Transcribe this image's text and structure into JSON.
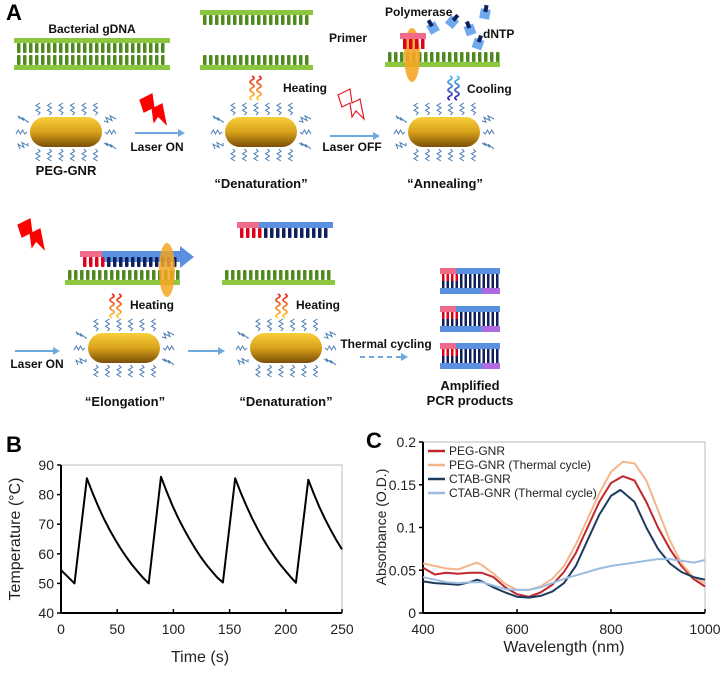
{
  "panel_labels": {
    "a": "A",
    "b": "B",
    "c": "C"
  },
  "panel_a": {
    "gdna": "Bacterial gDNA",
    "peg_gnr": "PEG-GNR",
    "laser_on_1": "Laser ON",
    "laser_off": "Laser OFF",
    "laser_on_2": "Laser ON",
    "heating_1": "Heating",
    "heating_2": "Heating",
    "heating_3": "Heating",
    "cooling": "Cooling",
    "polymerase": "Polymerase",
    "primer": "Primer",
    "dntp": "dNTP",
    "denaturation_1": "“Denaturation”",
    "annealing": "“Annealing”",
    "elongation": "“Elongation”",
    "denaturation_2": "“Denaturation”",
    "thermal_cycling": "Thermal cycling",
    "amplified_1": "Amplified",
    "amplified_2": "PCR products",
    "colors": {
      "dna_template": "#8dc63f",
      "primer": "#f06a8a",
      "new_strand": "#5b8fe0",
      "gnr": "#d9a21b",
      "polymerase": "#f5a623",
      "laser_on": "#ff0000"
    }
  },
  "chart_data": [
    {
      "type": "line",
      "panel": "B",
      "xlabel": "Time (s)",
      "ylabel": "Temperature (°C)",
      "xlim": [
        0,
        250
      ],
      "ylim": [
        40,
        90
      ],
      "xticks": [
        0,
        50,
        100,
        150,
        200,
        250
      ],
      "yticks": [
        40,
        50,
        60,
        70,
        80,
        90
      ],
      "grid": false,
      "series": [
        {
          "color": "#000000",
          "points": [
            [
              0,
              54.5
            ],
            [
              12,
              50
            ],
            [
              23,
              85.5
            ],
            [
              28,
              80.6
            ],
            [
              33,
              76.1
            ],
            [
              38,
              72.0
            ],
            [
              43,
              68.3
            ],
            [
              48,
              64.9
            ],
            [
              53,
              61.8
            ],
            [
              58,
              59.0
            ],
            [
              63,
              56.4
            ],
            [
              68,
              54.1
            ],
            [
              73,
              51.9
            ],
            [
              78,
              50
            ],
            [
              89,
              86
            ],
            [
              94,
              81
            ],
            [
              99,
              76.4
            ],
            [
              104,
              72.3
            ],
            [
              109,
              68.6
            ],
            [
              114,
              65.2
            ],
            [
              119,
              62
            ],
            [
              124,
              59.1
            ],
            [
              129,
              56.5
            ],
            [
              134,
              54.2
            ],
            [
              139,
              52
            ],
            [
              144,
              50.3
            ],
            [
              155,
              85.5
            ],
            [
              160,
              80.6
            ],
            [
              165,
              76.1
            ],
            [
              170,
              72
            ],
            [
              175,
              68.3
            ],
            [
              180,
              64.9
            ],
            [
              185,
              61.8
            ],
            [
              190,
              59
            ],
            [
              195,
              56.4
            ],
            [
              200,
              54.1
            ],
            [
              205,
              51.9
            ],
            [
              209,
              50.2
            ],
            [
              220,
              85
            ],
            [
              225,
              80.2
            ],
            [
              230,
              75.7
            ],
            [
              235,
              71.7
            ],
            [
              240,
              68
            ],
            [
              245,
              64.6
            ],
            [
              250,
              61.5
            ]
          ]
        }
      ]
    },
    {
      "type": "line",
      "panel": "C",
      "xlabel": "Wavelength (nm)",
      "ylabel": "Absorbance (O.D.)",
      "xlim": [
        400,
        1000
      ],
      "ylim": [
        0,
        0.2
      ],
      "xticks": [
        400,
        600,
        800,
        1000
      ],
      "yticks": [
        0,
        0.05,
        0.1,
        0.15,
        0.2
      ],
      "ytick_labels": [
        "0",
        "0.05",
        "0.1",
        "0.15",
        "0.2"
      ],
      "grid": false,
      "legend": "top-left",
      "series": [
        {
          "name": "PEG-GNR",
          "color": "#c0262c",
          "points": [
            [
              400,
              0.053
            ],
            [
              425,
              0.045
            ],
            [
              450,
              0.047
            ],
            [
              475,
              0.046
            ],
            [
              500,
              0.047
            ],
            [
              525,
              0.047
            ],
            [
              550,
              0.042
            ],
            [
              575,
              0.03
            ],
            [
              600,
              0.022
            ],
            [
              625,
              0.019
            ],
            [
              650,
              0.024
            ],
            [
              675,
              0.033
            ],
            [
              700,
              0.048
            ],
            [
              725,
              0.07
            ],
            [
              750,
              0.1
            ],
            [
              775,
              0.13
            ],
            [
              800,
              0.152
            ],
            [
              825,
              0.16
            ],
            [
              850,
              0.155
            ],
            [
              875,
              0.13
            ],
            [
              900,
              0.1
            ],
            [
              925,
              0.075
            ],
            [
              950,
              0.055
            ],
            [
              975,
              0.04
            ],
            [
              1000,
              0.031
            ]
          ]
        },
        {
          "name": "PEG-GNR (Thermal cycle)",
          "color": "#f5b58a",
          "points": [
            [
              400,
              0.058
            ],
            [
              425,
              0.055
            ],
            [
              450,
              0.052
            ],
            [
              475,
              0.051
            ],
            [
              500,
              0.056
            ],
            [
              515,
              0.059
            ],
            [
              525,
              0.056
            ],
            [
              550,
              0.046
            ],
            [
              575,
              0.034
            ],
            [
              600,
              0.027
            ],
            [
              625,
              0.027
            ],
            [
              650,
              0.031
            ],
            [
              675,
              0.04
            ],
            [
              700,
              0.055
            ],
            [
              725,
              0.08
            ],
            [
              750,
              0.11
            ],
            [
              775,
              0.14
            ],
            [
              800,
              0.165
            ],
            [
              825,
              0.177
            ],
            [
              850,
              0.175
            ],
            [
              875,
              0.155
            ],
            [
              900,
              0.12
            ],
            [
              925,
              0.085
            ],
            [
              950,
              0.058
            ],
            [
              975,
              0.042
            ],
            [
              1000,
              0.035
            ]
          ]
        },
        {
          "name": "CTAB-GNR",
          "color": "#1f3a5f",
          "points": [
            [
              400,
              0.037
            ],
            [
              425,
              0.035
            ],
            [
              450,
              0.034
            ],
            [
              475,
              0.033
            ],
            [
              500,
              0.036
            ],
            [
              515,
              0.039
            ],
            [
              525,
              0.037
            ],
            [
              550,
              0.03
            ],
            [
              575,
              0.024
            ],
            [
              600,
              0.019
            ],
            [
              625,
              0.018
            ],
            [
              650,
              0.02
            ],
            [
              675,
              0.025
            ],
            [
              700,
              0.035
            ],
            [
              725,
              0.055
            ],
            [
              750,
              0.085
            ],
            [
              775,
              0.115
            ],
            [
              800,
              0.137
            ],
            [
              820,
              0.144
            ],
            [
              850,
              0.13
            ],
            [
              875,
              0.1
            ],
            [
              900,
              0.075
            ],
            [
              925,
              0.058
            ],
            [
              950,
              0.048
            ],
            [
              975,
              0.042
            ],
            [
              1000,
              0.039
            ]
          ]
        },
        {
          "name": "CTAB-GNR (Thermal cycle)",
          "color": "#9dbde0",
          "points": [
            [
              400,
              0.042
            ],
            [
              425,
              0.039
            ],
            [
              450,
              0.036
            ],
            [
              475,
              0.035
            ],
            [
              500,
              0.036
            ],
            [
              525,
              0.036
            ],
            [
              550,
              0.032
            ],
            [
              575,
              0.028
            ],
            [
              600,
              0.027
            ],
            [
              625,
              0.027
            ],
            [
              650,
              0.03
            ],
            [
              675,
              0.035
            ],
            [
              700,
              0.04
            ],
            [
              725,
              0.044
            ],
            [
              750,
              0.048
            ],
            [
              775,
              0.052
            ],
            [
              800,
              0.055
            ],
            [
              825,
              0.057
            ],
            [
              850,
              0.059
            ],
            [
              875,
              0.061
            ],
            [
              900,
              0.063
            ],
            [
              925,
              0.063
            ],
            [
              950,
              0.061
            ],
            [
              975,
              0.059
            ],
            [
              1000,
              0.062
            ]
          ]
        }
      ]
    }
  ]
}
